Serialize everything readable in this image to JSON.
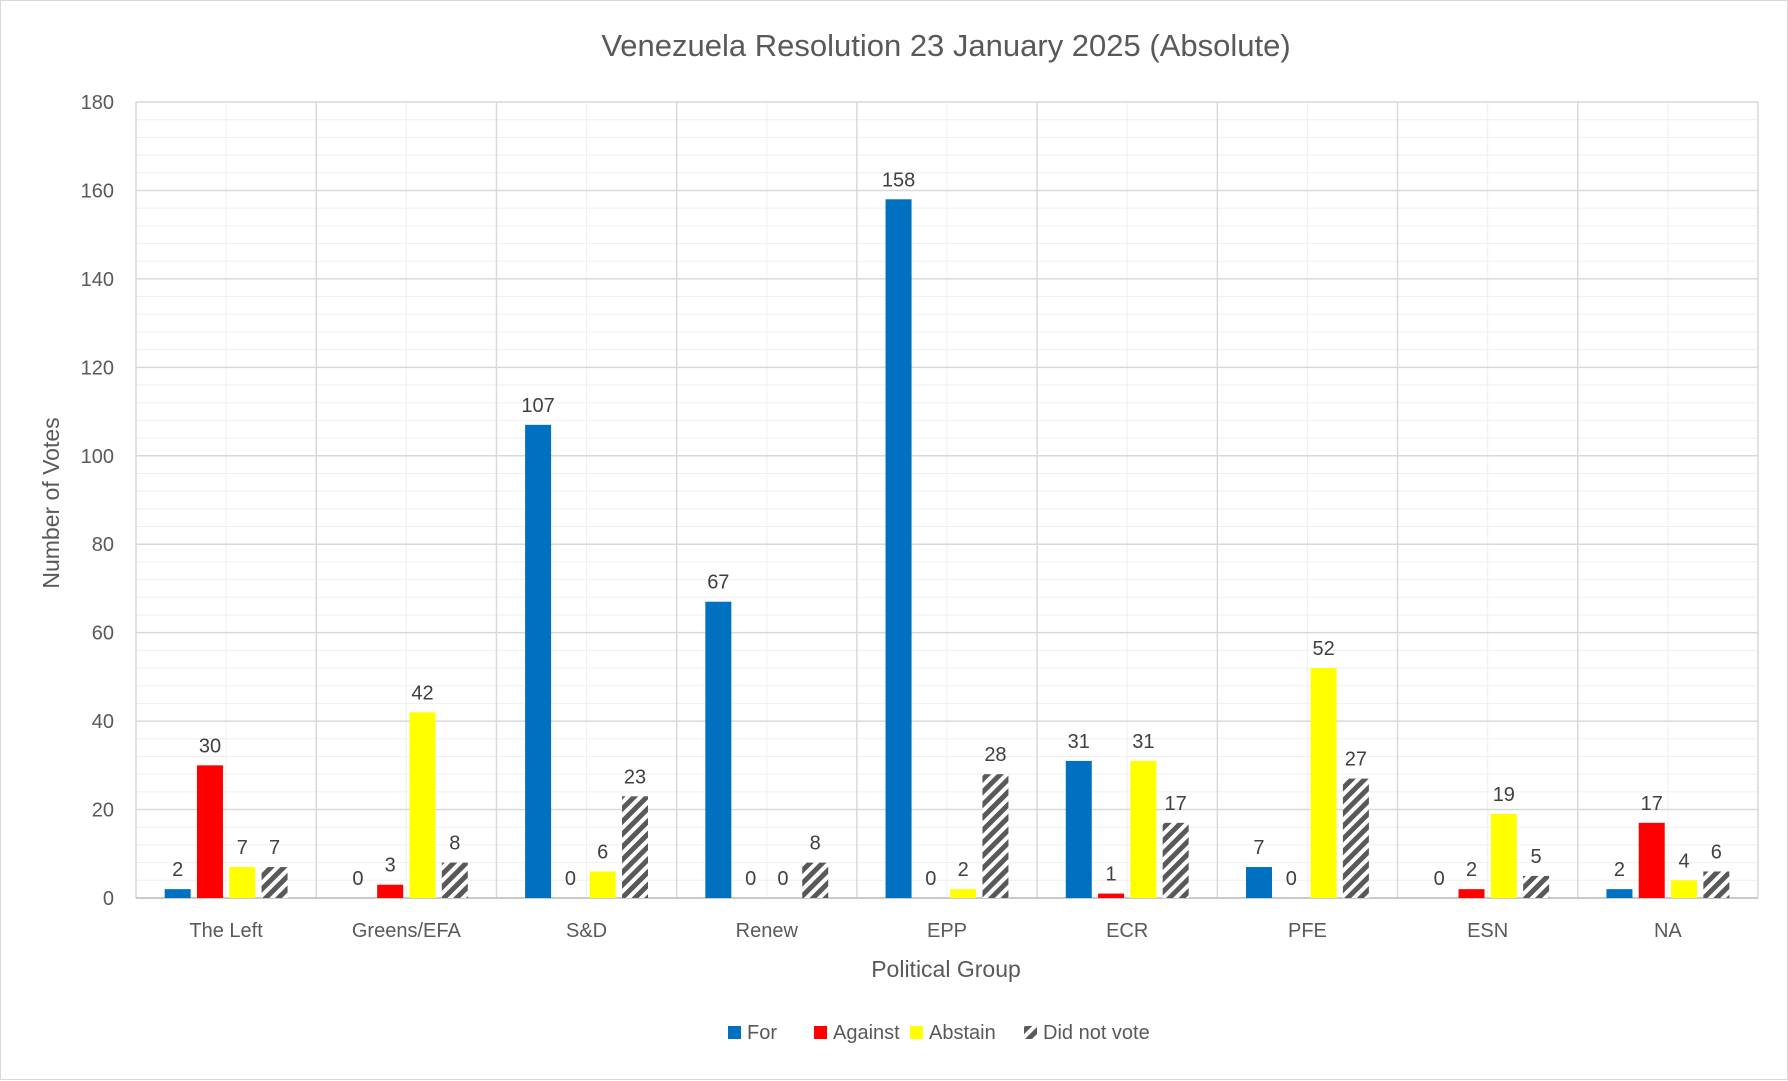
{
  "chart_data": {
    "type": "bar",
    "title": "Venezuela Resolution 23 January 2025 (Absolute)",
    "xlabel": "Political Group",
    "ylabel": "Number of Votes",
    "ylim": [
      0,
      180
    ],
    "ytick_step": 20,
    "grid": true,
    "legend_position": "bottom",
    "categories": [
      "The Left",
      "Greens/EFA",
      "S&D",
      "Renew",
      "EPP",
      "ECR",
      "PFE",
      "ESN",
      "NA"
    ],
    "series": [
      {
        "name": "For",
        "color": "#0070c0",
        "pattern": "solid",
        "values": [
          2,
          0,
          107,
          67,
          158,
          31,
          7,
          0,
          2
        ]
      },
      {
        "name": "Against",
        "color": "#ff0000",
        "pattern": "solid",
        "values": [
          30,
          3,
          0,
          0,
          0,
          1,
          0,
          2,
          17
        ]
      },
      {
        "name": "Abstain",
        "color": "#ffff00",
        "pattern": "solid",
        "values": [
          7,
          42,
          6,
          0,
          2,
          31,
          52,
          19,
          4
        ]
      },
      {
        "name": "Did not vote",
        "color": "#595959",
        "pattern": "diagonal-stripes",
        "values": [
          7,
          8,
          23,
          8,
          28,
          17,
          27,
          5,
          6
        ]
      }
    ]
  }
}
